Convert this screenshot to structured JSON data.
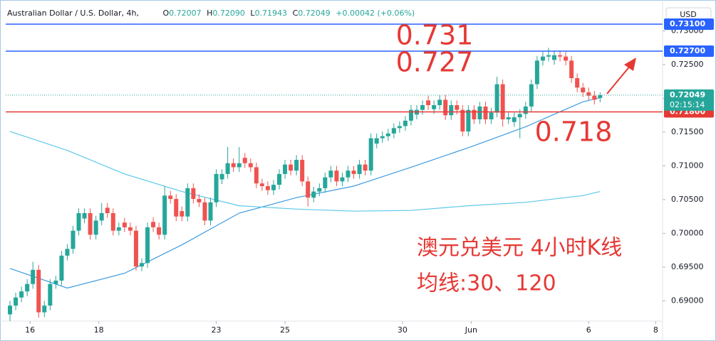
{
  "chart_data": {
    "type": "candlestick",
    "title": "Australian Dollar / U.S. Dollar, 4h,",
    "ohlc_legend": [
      {
        "key": "O",
        "value": "0.72007"
      },
      {
        "key": "H",
        "value": "0.72090"
      },
      {
        "key": "L",
        "value": "0.71943"
      },
      {
        "key": "C",
        "value": "0.72049"
      }
    ],
    "change": "+0.00042 (+0.06%)",
    "currency": "USD",
    "notes": [
      "澳元兑美元 4小时K线",
      "均线:30、120"
    ],
    "up_color": "#26a69a",
    "down_color": "#ef5350",
    "open": [
      0.688,
      0.6893,
      0.6905,
      0.6914,
      0.6925,
      0.6946,
      0.6883,
      0.6893,
      0.6925,
      0.693,
      0.6967,
      0.6977,
      0.7004,
      0.7022,
      0.703,
      0.6998,
      0.7019,
      0.7038,
      0.703,
      0.7004,
      0.7016,
      0.7009,
      0.7004,
      0.6951,
      0.6956,
      0.7017,
      0.7009,
      0.6998,
      0.7056,
      0.7051,
      0.7033,
      0.7025,
      0.7067,
      0.7051,
      0.7046,
      0.7019,
      0.7046,
      0.708,
      0.7088,
      0.7104,
      0.7098,
      0.7112,
      0.7104,
      0.7098,
      0.7074,
      0.707,
      0.7064,
      0.7072,
      0.7088,
      0.7102,
      0.7093,
      0.7109,
      0.7077,
      0.7053,
      0.7062,
      0.7067,
      0.7083,
      0.7093,
      0.7077,
      0.7083,
      0.7093,
      0.7088,
      0.7102,
      0.7093,
      0.7133,
      0.7141,
      0.7144,
      0.7148,
      0.7156,
      0.7159,
      0.7167,
      0.7176,
      0.7183,
      0.7197,
      0.7184,
      0.719,
      0.7198,
      0.7175,
      0.719,
      0.7183,
      0.7151,
      0.7183,
      0.7169,
      0.7188,
      0.7169,
      0.7179,
      0.7221,
      0.7169,
      0.7165,
      0.7172,
      0.7177,
      0.7188,
      0.7221,
      0.7256,
      0.7262,
      0.7257,
      0.7264,
      0.7262,
      0.7256,
      0.723,
      0.7216,
      0.7209,
      0.7204,
      0.72007
    ],
    "high": [
      0.69,
      0.6912,
      0.6921,
      0.6932,
      0.6958,
      0.6953,
      0.69,
      0.6932,
      0.6937,
      0.6974,
      0.6984,
      0.7011,
      0.7037,
      0.7037,
      0.7037,
      0.7026,
      0.7045,
      0.7045,
      0.7037,
      0.7016,
      0.7023,
      0.7016,
      0.7011,
      0.6963,
      0.7016,
      0.7024,
      0.7016,
      0.707,
      0.7063,
      0.7058,
      0.704,
      0.7074,
      0.7074,
      0.7058,
      0.7053,
      0.7053,
      0.7095,
      0.7095,
      0.7128,
      0.7111,
      0.7128,
      0.7119,
      0.7111,
      0.7105,
      0.7081,
      0.7077,
      0.7079,
      0.7095,
      0.7109,
      0.7109,
      0.7116,
      0.7116,
      0.7084,
      0.7069,
      0.7074,
      0.709,
      0.71,
      0.71,
      0.709,
      0.71,
      0.71,
      0.7109,
      0.7109,
      0.7148,
      0.7148,
      0.7151,
      0.7155,
      0.7163,
      0.7166,
      0.7174,
      0.719,
      0.719,
      0.7197,
      0.7204,
      0.7197,
      0.7205,
      0.7205,
      0.7197,
      0.7197,
      0.719,
      0.719,
      0.719,
      0.7195,
      0.7195,
      0.7186,
      0.7232,
      0.7228,
      0.7179,
      0.7179,
      0.7184,
      0.7195,
      0.7228,
      0.7263,
      0.7269,
      0.7275,
      0.7271,
      0.7271,
      0.7269,
      0.7263,
      0.7237,
      0.7223,
      0.7216,
      0.7211,
      0.7209
    ],
    "low": [
      0.687,
      0.6886,
      0.6898,
      0.6907,
      0.6918,
      0.6875,
      0.6876,
      0.6886,
      0.6918,
      0.6923,
      0.696,
      0.697,
      0.6997,
      0.7015,
      0.6991,
      0.6991,
      0.7012,
      0.7023,
      0.6997,
      0.6997,
      0.7002,
      0.6997,
      0.6945,
      0.6944,
      0.6949,
      0.7002,
      0.6991,
      0.6991,
      0.7044,
      0.7018,
      0.7018,
      0.7018,
      0.7044,
      0.7039,
      0.7012,
      0.7012,
      0.7039,
      0.7073,
      0.7081,
      0.7091,
      0.7091,
      0.7097,
      0.7091,
      0.7067,
      0.7063,
      0.7057,
      0.7057,
      0.7065,
      0.7081,
      0.7086,
      0.7086,
      0.707,
      0.704,
      0.7046,
      0.7055,
      0.706,
      0.7076,
      0.707,
      0.707,
      0.7076,
      0.7081,
      0.7081,
      0.7086,
      0.7086,
      0.7126,
      0.7134,
      0.7137,
      0.7141,
      0.7149,
      0.7152,
      0.716,
      0.7169,
      0.7176,
      0.7183,
      0.7177,
      0.7183,
      0.7168,
      0.7168,
      0.7176,
      0.7144,
      0.7144,
      0.7162,
      0.7162,
      0.7162,
      0.7162,
      0.7172,
      0.7158,
      0.7162,
      0.7158,
      0.7141,
      0.717,
      0.7181,
      0.7214,
      0.7249,
      0.7255,
      0.725,
      0.7255,
      0.7249,
      0.7223,
      0.7209,
      0.7202,
      0.7197,
      0.7191,
      0.71943
    ],
    "close": [
      0.6893,
      0.6905,
      0.6914,
      0.6925,
      0.6946,
      0.6883,
      0.6893,
      0.6925,
      0.693,
      0.6967,
      0.6977,
      0.7004,
      0.703,
      0.703,
      0.6998,
      0.7019,
      0.703,
      0.703,
      0.7004,
      0.7009,
      0.7009,
      0.7004,
      0.6951,
      0.6956,
      0.7009,
      0.7009,
      0.6998,
      0.7056,
      0.7051,
      0.7025,
      0.7025,
      0.7067,
      0.7051,
      0.7046,
      0.7019,
      0.7046,
      0.7088,
      0.7088,
      0.7104,
      0.7098,
      0.7104,
      0.7104,
      0.7098,
      0.7074,
      0.707,
      0.7064,
      0.7072,
      0.7088,
      0.7102,
      0.7093,
      0.7109,
      0.7077,
      0.7053,
      0.7062,
      0.7067,
      0.7083,
      0.7093,
      0.7077,
      0.7083,
      0.7093,
      0.7088,
      0.7102,
      0.7093,
      0.7141,
      0.7141,
      0.7144,
      0.7148,
      0.7156,
      0.7159,
      0.7167,
      0.7183,
      0.7183,
      0.719,
      0.719,
      0.719,
      0.7198,
      0.7175,
      0.719,
      0.7183,
      0.7151,
      0.7183,
      0.7169,
      0.7188,
      0.7169,
      0.7179,
      0.7221,
      0.7169,
      0.7172,
      0.7172,
      0.7177,
      0.7188,
      0.7221,
      0.7256,
      0.7262,
      0.7264,
      0.7264,
      0.7262,
      0.7256,
      0.723,
      0.7216,
      0.7209,
      0.7204,
      0.7198,
      0.72049
    ],
    "moving_averages": [
      {
        "color": "#3d9be0",
        "x": [
          0,
          10,
          20,
          30,
          40,
          50,
          60,
          70,
          80,
          90,
          100,
          103
        ],
        "values": [
          0.6948,
          0.6919,
          0.6941,
          0.6983,
          0.703,
          0.7053,
          0.707,
          0.7098,
          0.7127,
          0.7158,
          0.7195,
          0.7201
        ]
      },
      {
        "color": "#5cc8e8",
        "x": [
          0,
          10,
          20,
          30,
          40,
          50,
          60,
          70,
          80,
          90,
          100,
          103
        ],
        "values": [
          0.7151,
          0.7123,
          0.7088,
          0.7062,
          0.7041,
          0.7036,
          0.7033,
          0.7034,
          0.7041,
          0.7046,
          0.7056,
          0.7062
        ]
      }
    ],
    "levels": [
      {
        "value": 0.731,
        "label": "0.73100",
        "annotation": "0.731",
        "color": "#2962ff"
      },
      {
        "value": 0.727,
        "label": "0.72700",
        "annotation": "0.727",
        "color": "#2962ff"
      },
      {
        "value": 0.718,
        "label": "0.71800",
        "annotation": "0.718",
        "color": "#e53935"
      }
    ],
    "last_price": {
      "value": 0.72049,
      "label": "0.72049",
      "countdown": "02:15:14",
      "color": "#26a69a"
    },
    "xlim": [
      -0.75,
      113.9
    ],
    "xticks": [
      {
        "value": 3.5,
        "label": "16"
      },
      {
        "value": 15.5,
        "label": "18"
      },
      {
        "value": 36,
        "label": "23"
      },
      {
        "value": 48,
        "label": "25"
      },
      {
        "value": 68.5,
        "label": "30"
      },
      {
        "value": 80.5,
        "label": "Jun"
      },
      {
        "value": 101,
        "label": "6"
      },
      {
        "value": 112.7,
        "label": "8"
      }
    ],
    "ylim": [
      0.687,
      0.73374
    ],
    "yticks": [
      {
        "value": 0.69,
        "label": "0.69000"
      },
      {
        "value": 0.695,
        "label": "0.69500"
      },
      {
        "value": 0.7,
        "label": "0.70000"
      },
      {
        "value": 0.705,
        "label": "0.70500"
      },
      {
        "value": 0.71,
        "label": "0.71000"
      },
      {
        "value": 0.715,
        "label": "0.71500"
      },
      {
        "value": 0.72,
        "label": "0.72000"
      },
      {
        "value": 0.725,
        "label": "0.72500"
      },
      {
        "value": 0.73,
        "label": "0.73000"
      }
    ]
  }
}
